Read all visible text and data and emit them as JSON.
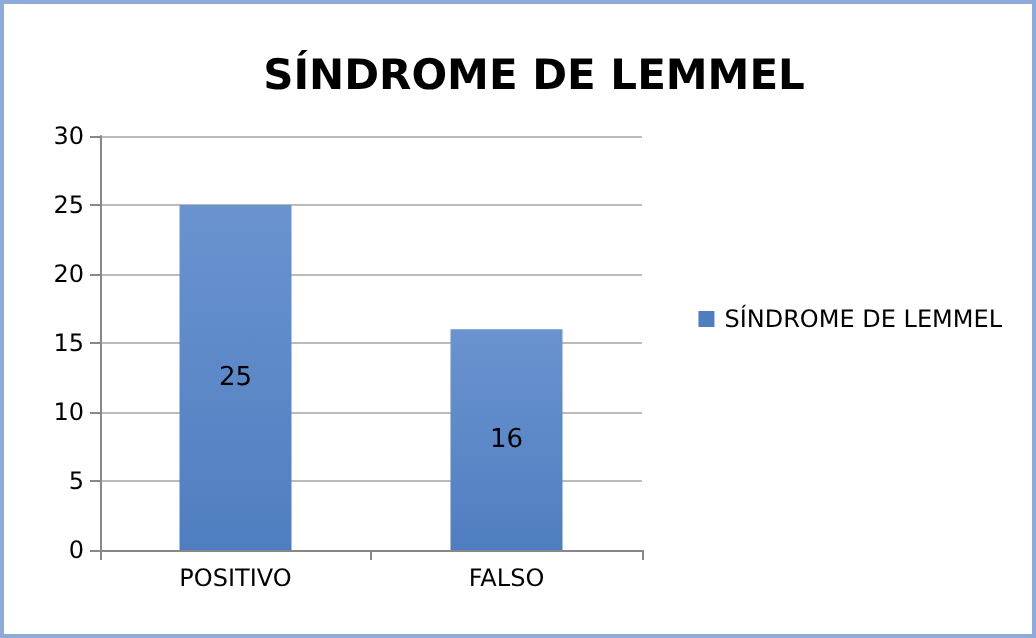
{
  "chart_data": {
    "type": "bar",
    "title": "SÍNDROME DE LEMMEL",
    "categories": [
      "POSITIVO",
      "FALSO"
    ],
    "series": [
      {
        "name": "SÍNDROME DE LEMMEL",
        "color": "#4f7ec0",
        "values": [
          25,
          16
        ]
      }
    ],
    "ylim": [
      0,
      30
    ],
    "yticks": [
      0,
      5,
      10,
      15,
      20,
      25,
      30
    ],
    "grid": "y",
    "legend": "right",
    "data_labels": true
  }
}
